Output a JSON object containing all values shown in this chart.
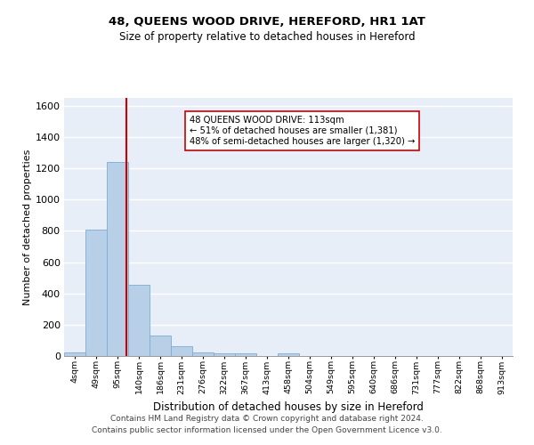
{
  "title": "48, QUEENS WOOD DRIVE, HEREFORD, HR1 1AT",
  "subtitle": "Size of property relative to detached houses in Hereford",
  "xlabel": "Distribution of detached houses by size in Hereford",
  "ylabel": "Number of detached properties",
  "footnote1": "Contains HM Land Registry data © Crown copyright and database right 2024.",
  "footnote2": "Contains public sector information licensed under the Open Government Licence v3.0.",
  "annotation_line1": "48 QUEENS WOOD DRIVE: 113sqm",
  "annotation_line2": "← 51% of detached houses are smaller (1,381)",
  "annotation_line3": "48% of semi-detached houses are larger (1,320) →",
  "bar_color": "#b8cfe8",
  "bar_edge_color": "#7aadd4",
  "background_color": "#e8eef8",
  "grid_color": "#ffffff",
  "marker_color": "#cc0000",
  "marker_bin": 2,
  "categories": [
    "4sqm",
    "49sqm",
    "95sqm",
    "140sqm",
    "186sqm",
    "231sqm",
    "276sqm",
    "322sqm",
    "367sqm",
    "413sqm",
    "458sqm",
    "504sqm",
    "549sqm",
    "595sqm",
    "640sqm",
    "686sqm",
    "731sqm",
    "777sqm",
    "822sqm",
    "868sqm",
    "913sqm"
  ],
  "values": [
    25,
    810,
    1240,
    455,
    130,
    60,
    25,
    15,
    15,
    0,
    15,
    0,
    0,
    0,
    0,
    0,
    0,
    0,
    0,
    0,
    0
  ],
  "ylim": [
    0,
    1650
  ],
  "yticks": [
    0,
    200,
    400,
    600,
    800,
    1000,
    1200,
    1400,
    1600
  ],
  "title_fontsize": 9.5,
  "subtitle_fontsize": 8.5,
  "ylabel_fontsize": 8,
  "xlabel_fontsize": 8.5,
  "footnote_fontsize": 6.5
}
